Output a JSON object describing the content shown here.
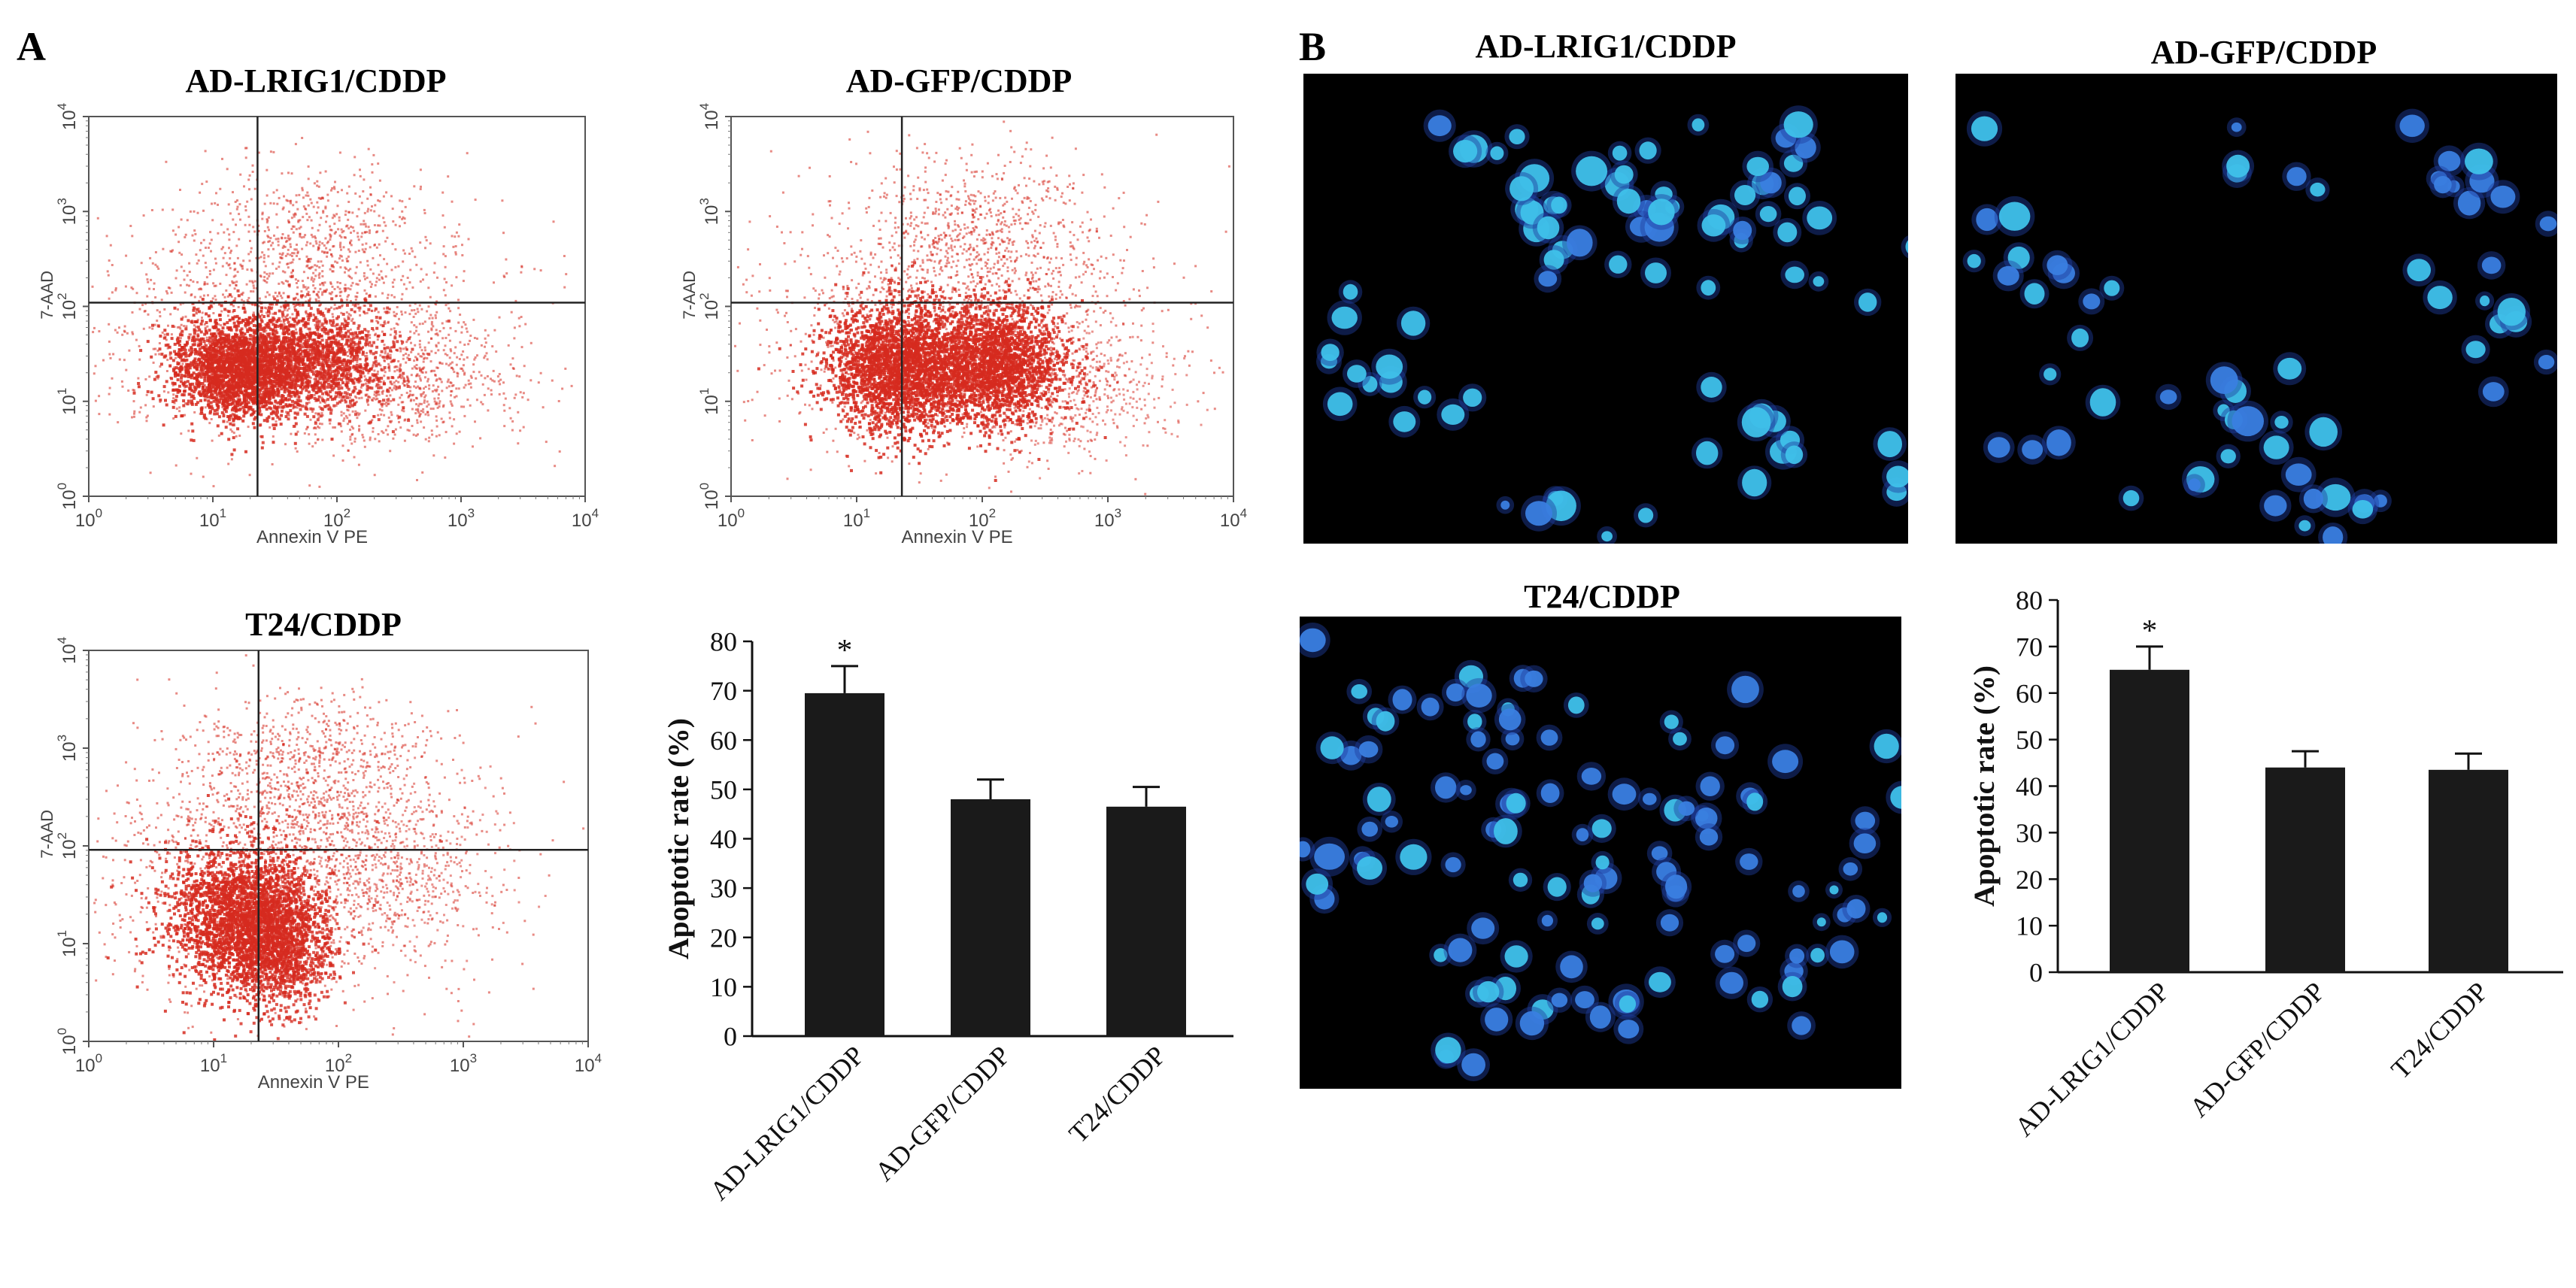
{
  "panels": {
    "a": "A",
    "b": "B"
  },
  "flow_axis": {
    "xlabel": "Annexin V PE",
    "ylabel": "7-AAD",
    "ticks": [
      "0",
      "1",
      "2",
      "3",
      "4"
    ],
    "tick_base": "10"
  },
  "cells": {
    "ad_lrig1": "AD-LRIG1/CDDP",
    "ad_gfp": "AD-GFP/CDDP",
    "t24": "T24/CDDP"
  },
  "colors": {
    "flow_dots": "#d62a1f",
    "nuclei": "#3fc1ea",
    "nuclei_dim": "#3a7ee0",
    "micrograph_bg": "#000000",
    "bar_fill": "#1a1a1a"
  },
  "chart_data": [
    {
      "type": "bar",
      "categories": [
        "AD-LRIG1/CDDP",
        "AD-GFP/CDDP",
        "T24/CDDP"
      ],
      "values": [
        69.5,
        48,
        46.5
      ],
      "errors": [
        5.5,
        4,
        4
      ],
      "significance": [
        "*",
        "",
        ""
      ],
      "xlabel": "",
      "ylabel": "Apoptotic rate (%)",
      "ylim": [
        0,
        80
      ],
      "yticks": [
        "0",
        "10",
        "20",
        "30",
        "40",
        "50",
        "60",
        "70",
        "80"
      ],
      "grid": false
    },
    {
      "type": "bar",
      "categories": [
        "AD-LRIG1/CDDP",
        "AD-GFP/CDDP",
        "T24/CDDP"
      ],
      "values": [
        65,
        44,
        43.5
      ],
      "errors": [
        5,
        3.5,
        3.5
      ],
      "significance": [
        "*",
        "",
        ""
      ],
      "xlabel": "",
      "ylabel": "Apoptotic rate (%)",
      "ylim": [
        0,
        80
      ],
      "yticks": [
        "0",
        "10",
        "20",
        "30",
        "40",
        "50",
        "60",
        "70",
        "80"
      ],
      "grid": false
    }
  ]
}
